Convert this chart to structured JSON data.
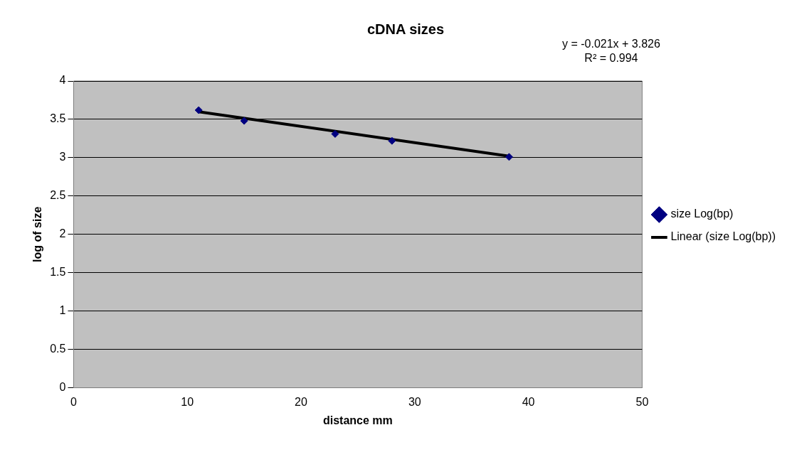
{
  "chart_data": {
    "type": "scatter",
    "title": "cDNA sizes",
    "xlabel": "distance mm",
    "ylabel": "log of size",
    "annotations": [
      "y = -0.021x + 3.826",
      "R² = 0.994"
    ],
    "series": [
      {
        "name": "size Log(bp)",
        "type": "scatter",
        "color": "#000080",
        "x": [
          11,
          15,
          23,
          28,
          38.3
        ],
        "values": [
          3.62,
          3.48,
          3.31,
          3.22,
          3.01
        ],
        "marker": "diamond"
      },
      {
        "name": "Linear (size Log(bp))",
        "type": "line",
        "color": "#000000",
        "x": [
          11,
          38.3
        ],
        "values": [
          3.6,
          3.02
        ],
        "marker": "none"
      }
    ],
    "xlim": [
      0,
      50
    ],
    "xticks": [
      0,
      10,
      20,
      30,
      40,
      50
    ],
    "ylim": [
      0,
      4
    ],
    "yticks": [
      0,
      0.5,
      1,
      1.5,
      2,
      2.5,
      3,
      3.5,
      4
    ],
    "grid": "y",
    "legend": "right"
  }
}
